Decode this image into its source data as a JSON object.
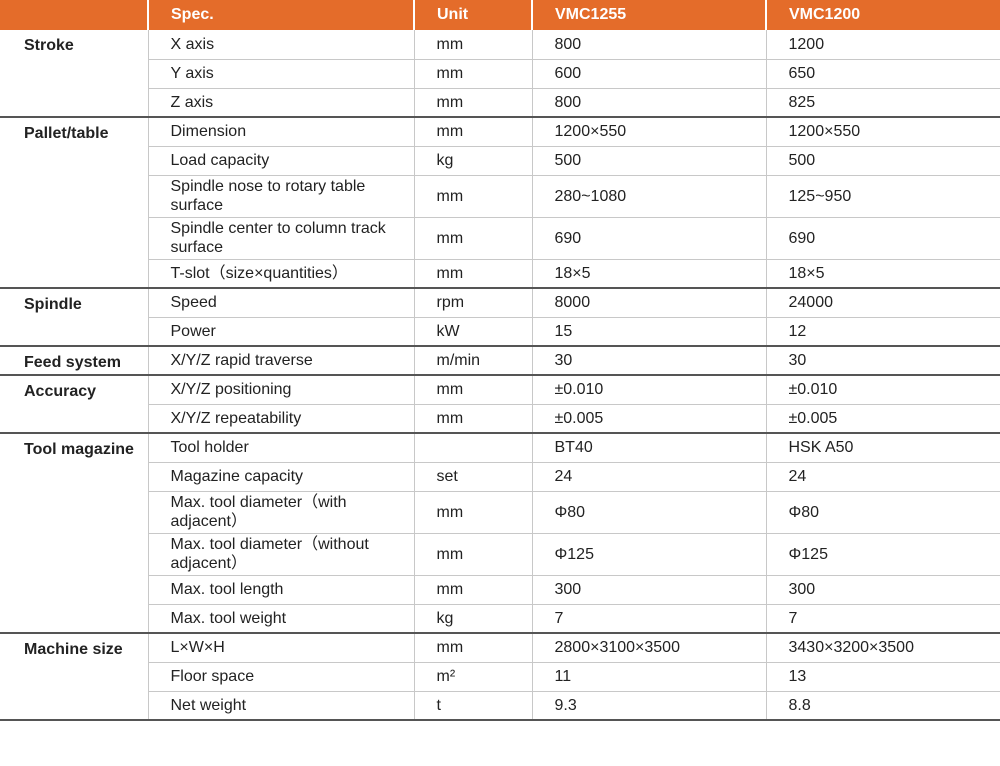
{
  "header": {
    "spec": "Spec.",
    "unit": "Unit",
    "model_a": "VMC1255",
    "model_b": "VMC1200"
  },
  "groups": [
    {
      "category": "Stroke",
      "rows": [
        {
          "spec": "X axis",
          "unit": "mm",
          "a": "800",
          "b": "1200"
        },
        {
          "spec": "Y axis",
          "unit": "mm",
          "a": "600",
          "b": "650"
        },
        {
          "spec": "Z axis",
          "unit": "mm",
          "a": "800",
          "b": "825"
        }
      ]
    },
    {
      "category": "Pallet/table",
      "rows": [
        {
          "spec": "Dimension",
          "unit": "mm",
          "a": "1200×550",
          "b": "1200×550"
        },
        {
          "spec": "Load capacity",
          "unit": "kg",
          "a": "500",
          "b": "500"
        },
        {
          "spec": "Spindle nose to rotary table surface",
          "unit": "mm",
          "a": "280~1080",
          "b": "125~950",
          "tall": true
        },
        {
          "spec": "Spindle center to column track surface",
          "unit": "mm",
          "a": "690",
          "b": "690",
          "tall": true
        },
        {
          "spec": "T-slot（size×quantities）",
          "unit": "mm",
          "a": "18×5",
          "b": "18×5"
        }
      ]
    },
    {
      "category": "Spindle",
      "rows": [
        {
          "spec": "Speed",
          "unit": "rpm",
          "a": "8000",
          "b": "24000"
        },
        {
          "spec": "Power",
          "unit": "kW",
          "a": "15",
          "b": "12"
        }
      ]
    },
    {
      "category": "Feed system",
      "rows": [
        {
          "spec": "X/Y/Z rapid traverse",
          "unit": "m/min",
          "a": "30",
          "b": "30"
        }
      ]
    },
    {
      "category": "Accuracy",
      "rows": [
        {
          "spec": "X/Y/Z positioning",
          "unit": "mm",
          "a": "±0.010",
          "b": "±0.010"
        },
        {
          "spec": "X/Y/Z repeatability",
          "unit": "mm",
          "a": "±0.005",
          "b": "±0.005"
        }
      ]
    },
    {
      "category": "Tool magazine",
      "rows": [
        {
          "spec": "Tool holder",
          "unit": "",
          "a": "BT40",
          "b": "HSK A50"
        },
        {
          "spec": "Magazine capacity",
          "unit": "set",
          "a": "24",
          "b": "24"
        },
        {
          "spec": "Max. tool diameter（with adjacent）",
          "unit": "mm",
          "a": "Φ80",
          "b": "Φ80",
          "tall": true
        },
        {
          "spec": "Max. tool diameter（without adjacent）",
          "unit": "mm",
          "a": "Φ125",
          "b": "Φ125",
          "tall": true
        },
        {
          "spec": "Max. tool length",
          "unit": "mm",
          "a": "300",
          "b": "300"
        },
        {
          "spec": "Max. tool weight",
          "unit": "kg",
          "a": "7",
          "b": "7"
        }
      ]
    },
    {
      "category": "Machine size",
      "rows": [
        {
          "spec": "L×W×H",
          "unit": "mm",
          "a": "2800×3100×3500",
          "b": "3430×3200×3500"
        },
        {
          "spec": "Floor space",
          "unit": "m²",
          "a": "11",
          "b": "13"
        },
        {
          "spec": "Net weight",
          "unit": "t",
          "a": "9.3",
          "b": "8.8"
        }
      ]
    }
  ]
}
